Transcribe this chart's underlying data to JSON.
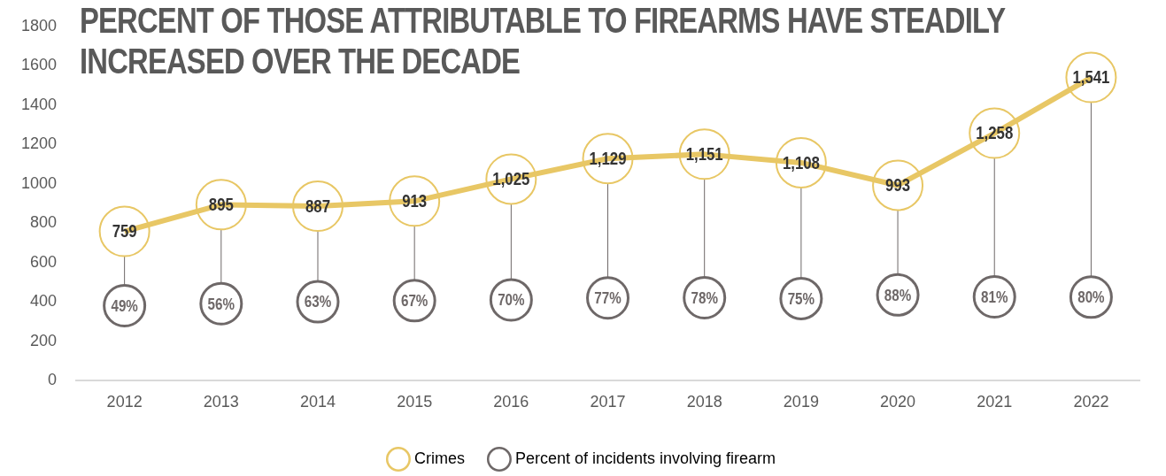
{
  "chart_data": {
    "type": "line",
    "title": "PERCENT OF THOSE ATTRIBUTABLE TO FIREARMS HAVE STEADILY INCREASED OVER THE DECADE",
    "categories": [
      "2012",
      "2013",
      "2014",
      "2015",
      "2016",
      "2017",
      "2018",
      "2019",
      "2020",
      "2021",
      "2022"
    ],
    "series": [
      {
        "name": "Crimes",
        "color": "#e8c765",
        "values": [
          759,
          895,
          887,
          913,
          1025,
          1129,
          1151,
          1108,
          993,
          1258,
          1541
        ],
        "value_labels": [
          "759",
          "895",
          "887",
          "913",
          "1,025",
          "1,129",
          "1,151",
          "1,108",
          "993",
          "1,258",
          "1,541"
        ]
      },
      {
        "name": "Percent of incidents involving firearm",
        "type": "scatter",
        "color": "#6e6868",
        "axis": "y2",
        "values": [
          49,
          56,
          63,
          67,
          70,
          77,
          78,
          75,
          88,
          81,
          80
        ],
        "value_labels": [
          "49%",
          "56%",
          "63%",
          "67%",
          "70%",
          "77%",
          "78%",
          "75%",
          "88%",
          "81%",
          "80%"
        ]
      }
    ],
    "ylim": [
      0,
      1800
    ],
    "yticks": [
      0,
      200,
      400,
      600,
      800,
      1000,
      1200,
      1400,
      1600,
      1800
    ],
    "tick_labels": "xy",
    "grid": false,
    "legend": "bottom",
    "marker": "circle"
  }
}
